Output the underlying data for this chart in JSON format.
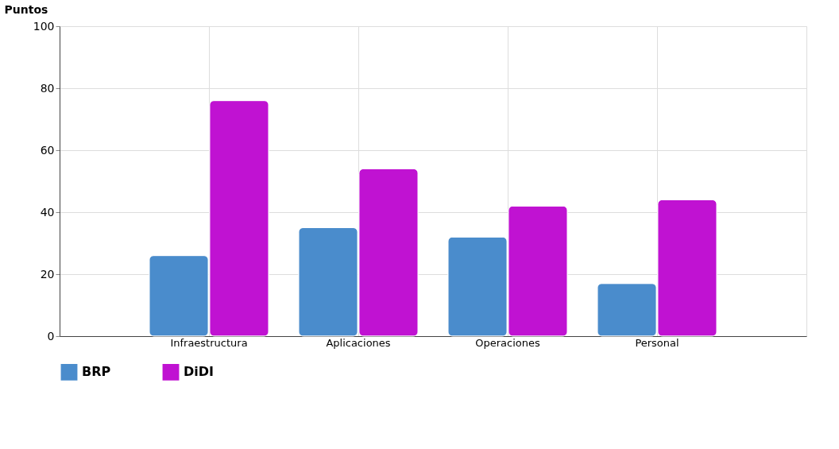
{
  "chart_data": {
    "type": "bar",
    "ylabel": "Puntos",
    "categories": [
      "Infraestructura",
      "Aplicaciones",
      "Operaciones",
      "Personal"
    ],
    "series": [
      {
        "name": "BRP",
        "color": "#4a8ccc",
        "values": [
          26,
          35,
          32,
          17
        ]
      },
      {
        "name": "DiDI",
        "color": "#c012d2",
        "values": [
          76,
          54,
          42,
          44
        ]
      }
    ],
    "ylim": [
      0,
      100
    ],
    "yticks": [
      0,
      20,
      40,
      60,
      80,
      100
    ],
    "grid": true,
    "legend": "bottom"
  }
}
